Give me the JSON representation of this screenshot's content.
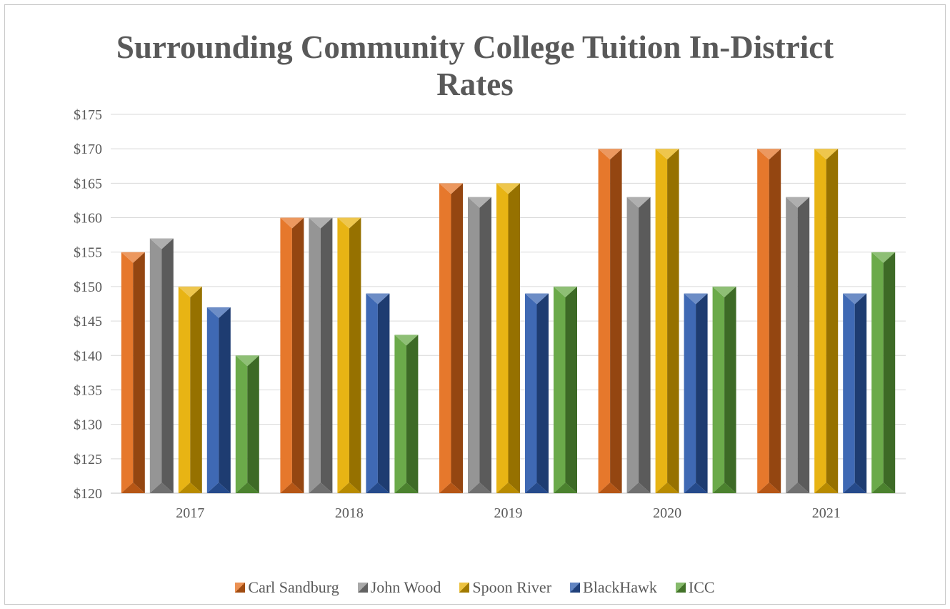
{
  "chart_data": {
    "type": "bar",
    "title_lines": [
      "Surrounding Community College Tuition In-District",
      "Rates"
    ],
    "categories": [
      "2017",
      "2018",
      "2019",
      "2020",
      "2021"
    ],
    "series": [
      {
        "name": "Carl Sandburg",
        "values": [
          155,
          160,
          165,
          170,
          170
        ],
        "color": "#E46C1A"
      },
      {
        "name": "John Wood",
        "values": [
          157,
          160,
          163,
          163,
          163
        ],
        "color": "#8C8C8C"
      },
      {
        "name": "Spoon River",
        "values": [
          150,
          160,
          165,
          170,
          170
        ],
        "color": "#E6AE00"
      },
      {
        "name": "BlackHawk",
        "values": [
          147,
          149,
          149,
          149,
          149
        ],
        "color": "#2E5CAE"
      },
      {
        "name": "ICC",
        "values": [
          140,
          143,
          150,
          150,
          155
        ],
        "color": "#5EA33A"
      }
    ],
    "ylim": [
      120,
      175
    ],
    "ytick_step": 5,
    "ytick_prefix": "$",
    "grid": true,
    "legend_position": "bottom"
  }
}
